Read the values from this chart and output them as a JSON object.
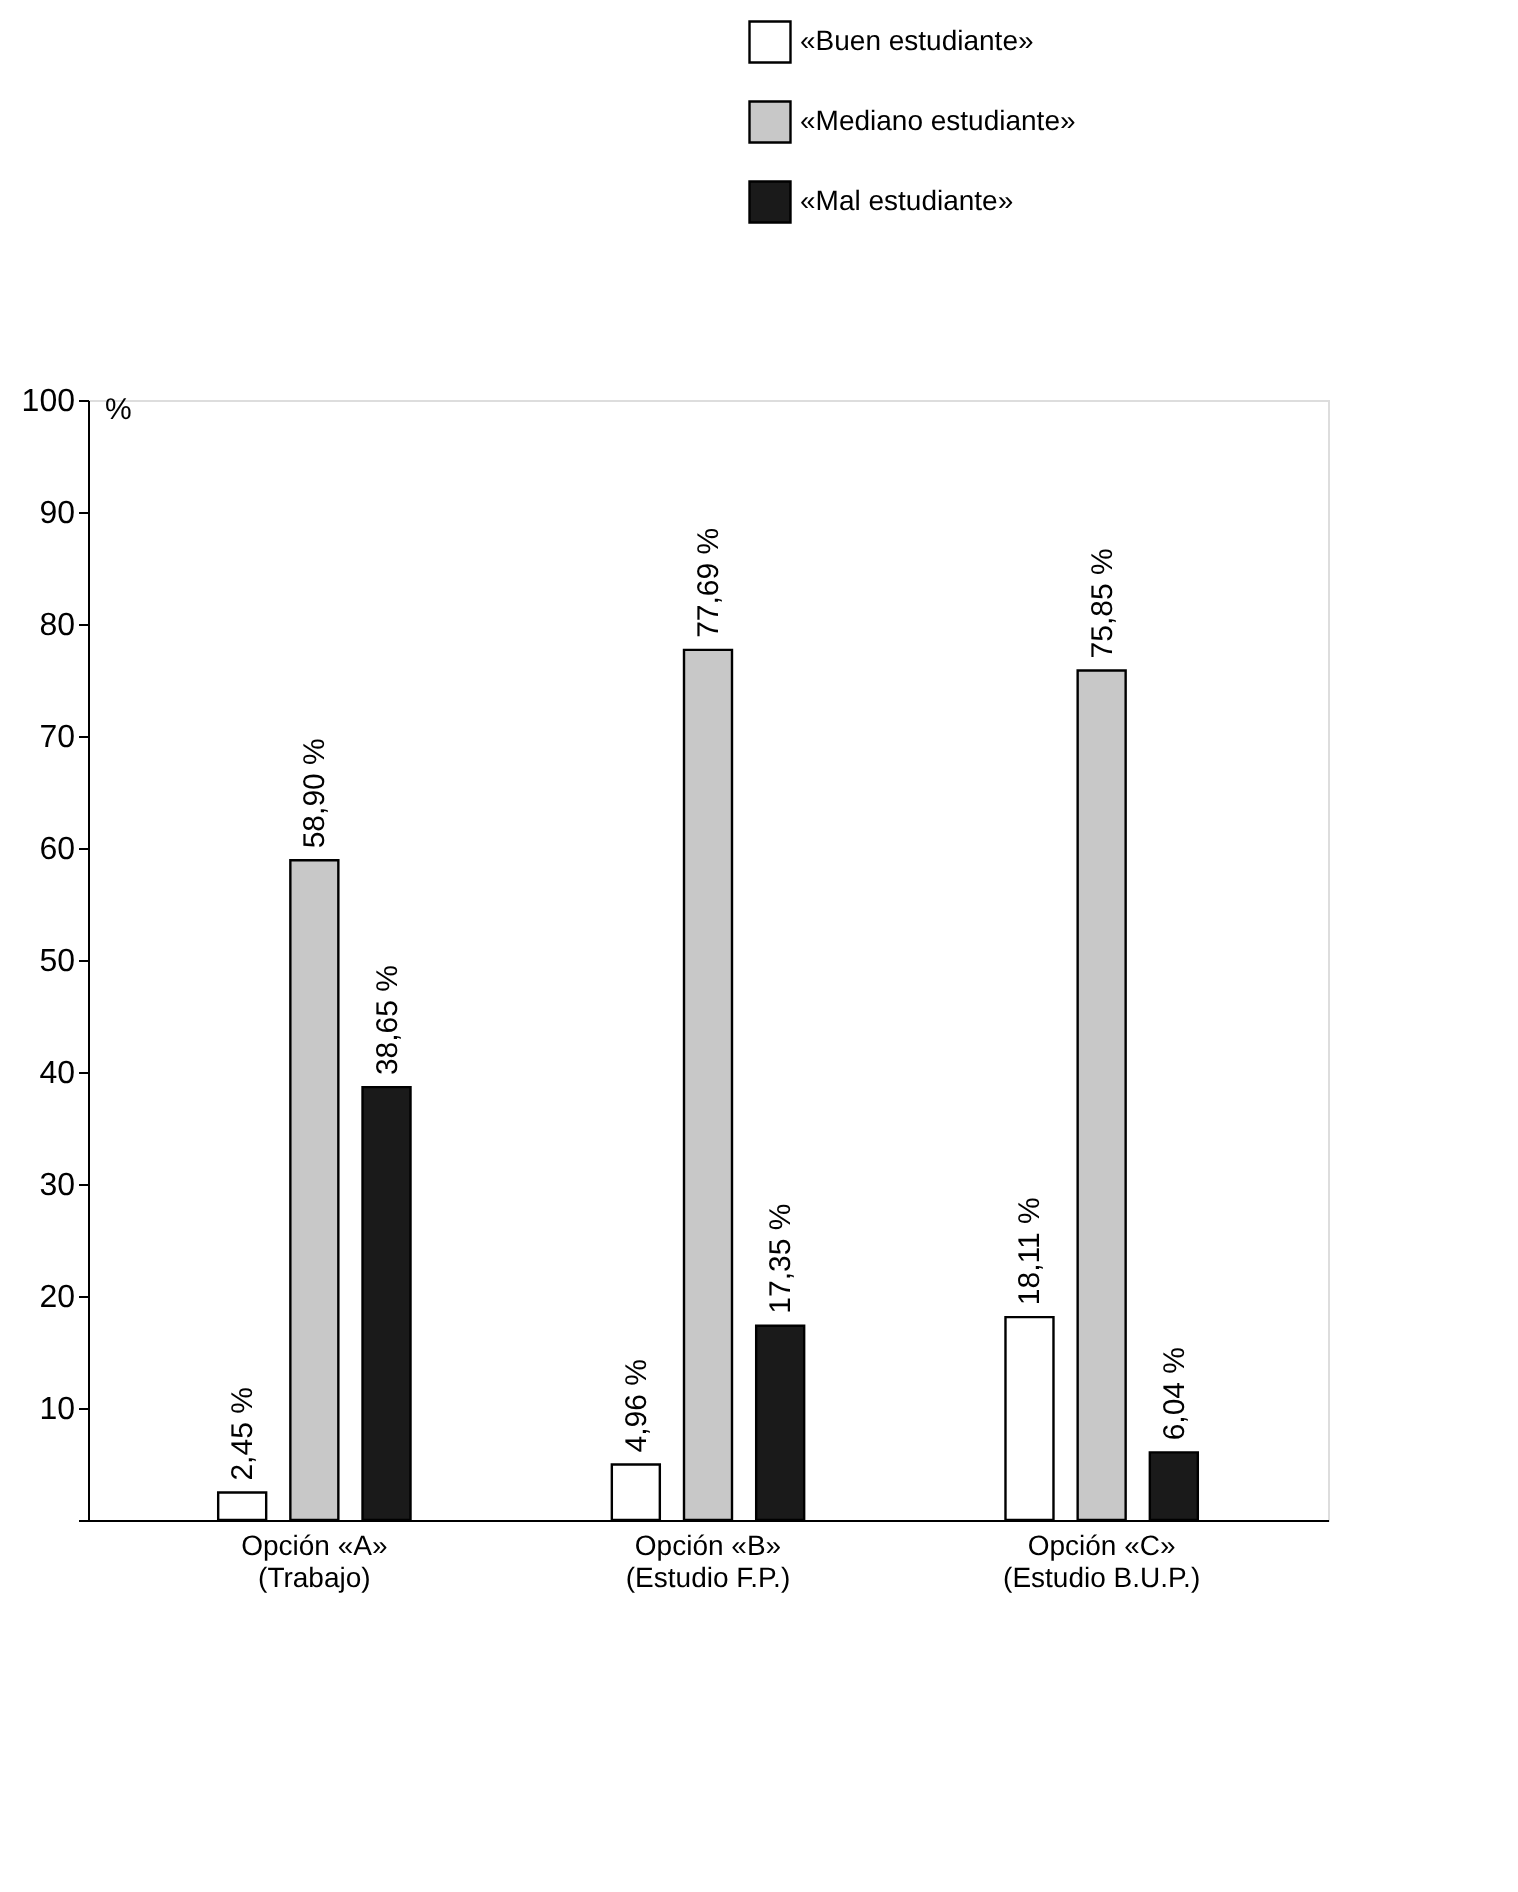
{
  "chart_data": {
    "type": "bar",
    "ylabel": "%",
    "categories": [
      "Opción «A»\n(Trabajo)",
      "Opción «B»\n(Estudio F.P.)",
      "Opción «C»\n(Estudio B.U.P.)"
    ],
    "series": [
      {
        "name": "«Buen estudiante»",
        "color": "#ffffff",
        "values": [
          2.45,
          4.96,
          18.11
        ],
        "value_labels": [
          "2,45 %",
          "4,96 %",
          "18,11 %"
        ]
      },
      {
        "name": "«Mediano estudiante»",
        "color": "#c8c8c8",
        "values": [
          58.9,
          77.69,
          75.85
        ],
        "value_labels": [
          "58,90 %",
          "77,69 %",
          "75,85 %"
        ]
      },
      {
        "name": "«Mal estudiante»",
        "color": "#1a1a1a",
        "values": [
          38.65,
          17.35,
          6.04
        ],
        "value_labels": [
          "38,65 %",
          "17,35 %",
          "6,04 %"
        ]
      }
    ],
    "ylim": [
      0,
      100
    ],
    "yticks": [
      {
        "value": 0,
        "label": null
      },
      10,
      20,
      30,
      40,
      50,
      60,
      70,
      80,
      90,
      100
    ],
    "grid": false,
    "legend": "top right"
  }
}
